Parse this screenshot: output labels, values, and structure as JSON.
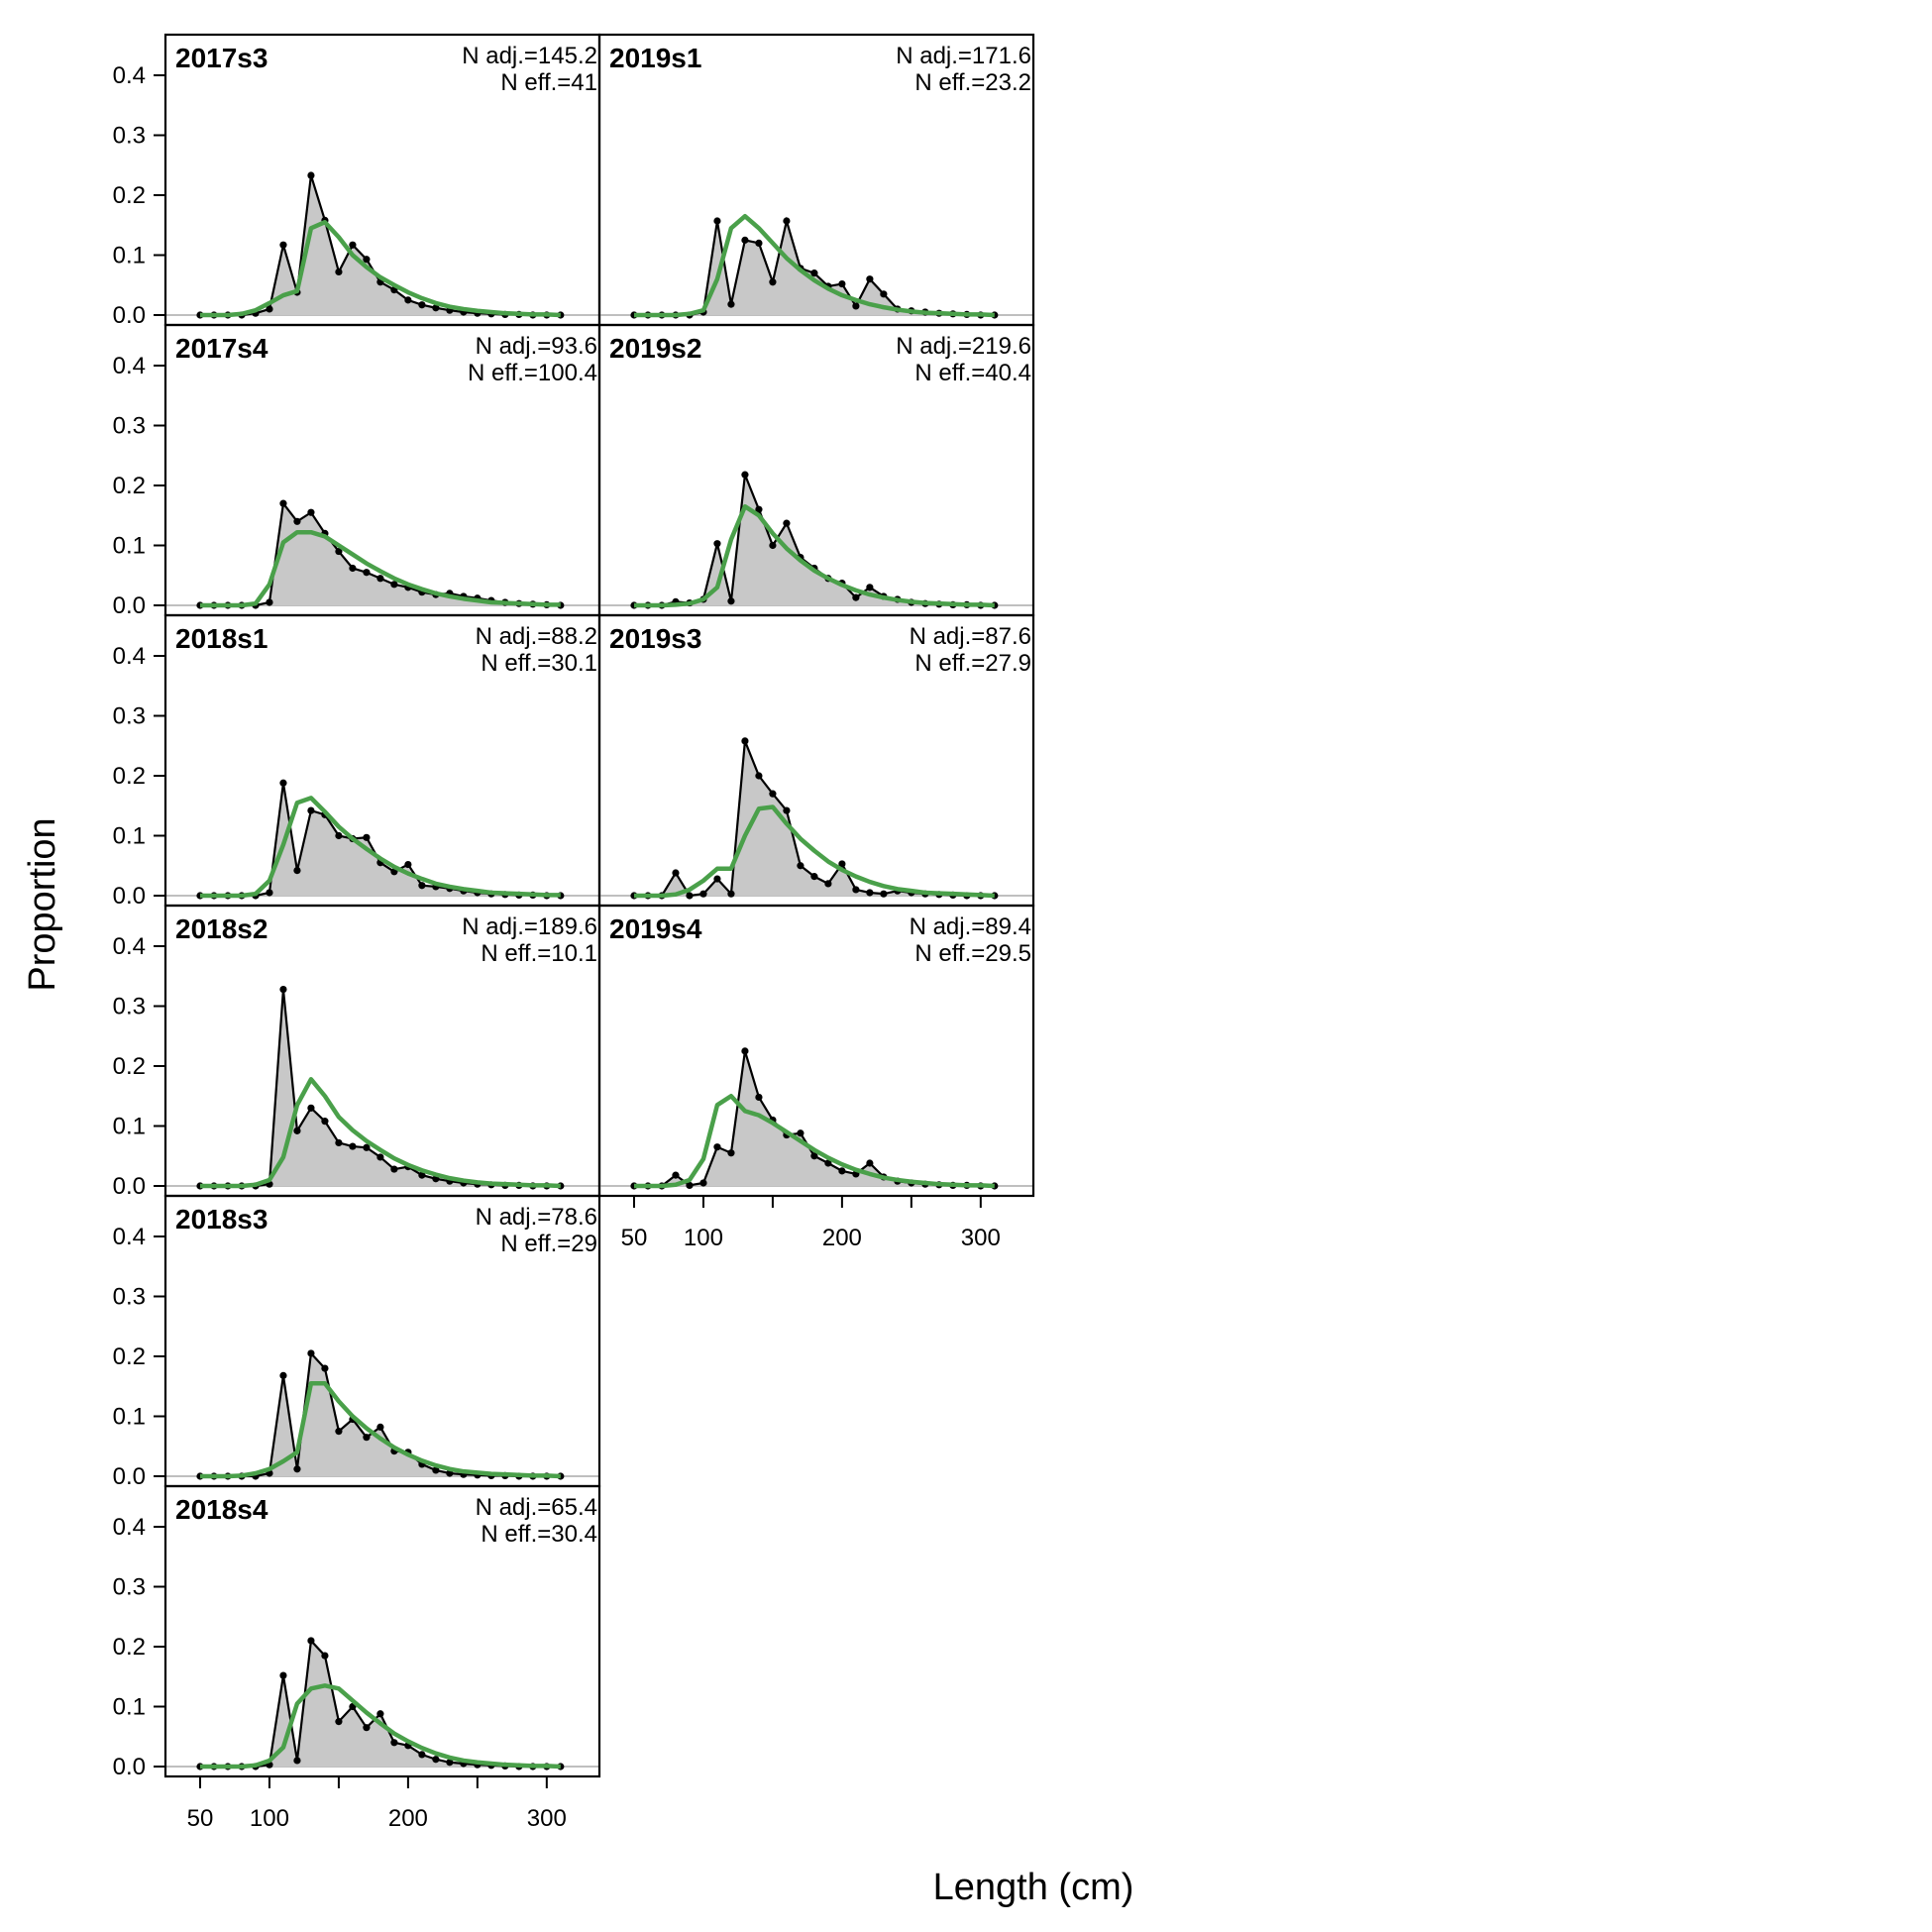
{
  "chart_data": {
    "type": "area",
    "ylabel": "Proportion",
    "xlabel": "Length (cm)",
    "ylim": [
      0,
      0.47
    ],
    "xlim": [
      25,
      338
    ],
    "y_ticks": [
      0.0,
      0.1,
      0.2,
      0.3,
      0.4
    ],
    "y_tick_labels": [
      "0.0",
      "0.1",
      "0.2",
      "0.3",
      "0.4"
    ],
    "x_ticks": [
      50,
      100,
      150,
      200,
      250,
      300
    ],
    "x_tick_labels": [
      "50",
      "100",
      "",
      "200",
      "",
      "300"
    ],
    "x": [
      50,
      60,
      70,
      80,
      90,
      100,
      110,
      120,
      130,
      140,
      150,
      160,
      170,
      180,
      190,
      200,
      210,
      220,
      230,
      240,
      250,
      260,
      270,
      280,
      290,
      300,
      310
    ],
    "colors": {
      "observed_fill": "#c8c8c8",
      "observed_line": "#000000",
      "expected_line": "#4aa04a",
      "zero_line": "#bfbfbf"
    },
    "panels": [
      {
        "label": "2017s3",
        "n_adj": "N adj.=145.2",
        "n_eff": "N eff.=41",
        "observed": [
          0,
          0,
          0,
          0,
          0.003,
          0.01,
          0.117,
          0.038,
          0.233,
          0.158,
          0.072,
          0.117,
          0.093,
          0.055,
          0.042,
          0.025,
          0.017,
          0.012,
          0.008,
          0.005,
          0.003,
          0.002,
          0.001,
          0.001,
          0,
          0,
          0
        ],
        "expected": [
          0,
          0,
          0,
          0.002,
          0.008,
          0.02,
          0.033,
          0.04,
          0.145,
          0.155,
          0.13,
          0.1,
          0.08,
          0.063,
          0.05,
          0.038,
          0.028,
          0.02,
          0.014,
          0.01,
          0.007,
          0.005,
          0.003,
          0.002,
          0.001,
          0.001,
          0
        ]
      },
      {
        "label": "2017s4",
        "n_adj": "N adj.=93.6",
        "n_eff": "N eff.=100.4",
        "observed": [
          0,
          0,
          0,
          0,
          0,
          0.005,
          0.17,
          0.14,
          0.155,
          0.12,
          0.09,
          0.062,
          0.055,
          0.045,
          0.035,
          0.03,
          0.022,
          0.018,
          0.02,
          0.015,
          0.012,
          0.008,
          0.005,
          0.003,
          0.002,
          0.001,
          0
        ],
        "expected": [
          0,
          0,
          0,
          0,
          0.003,
          0.035,
          0.105,
          0.122,
          0.122,
          0.115,
          0.1,
          0.085,
          0.07,
          0.057,
          0.045,
          0.035,
          0.027,
          0.02,
          0.015,
          0.011,
          0.008,
          0.005,
          0.004,
          0.003,
          0.002,
          0.001,
          0.001
        ]
      },
      {
        "label": "2018s1",
        "n_adj": "N adj.=88.2",
        "n_eff": "N eff.=30.1",
        "observed": [
          0,
          0,
          0,
          0,
          0,
          0.005,
          0.188,
          0.042,
          0.142,
          0.135,
          0.1,
          0.095,
          0.097,
          0.055,
          0.04,
          0.052,
          0.017,
          0.015,
          0.012,
          0.008,
          0.005,
          0.003,
          0.002,
          0.001,
          0.001,
          0,
          0
        ],
        "expected": [
          0,
          0,
          0,
          0,
          0.003,
          0.025,
          0.085,
          0.155,
          0.163,
          0.14,
          0.115,
          0.095,
          0.078,
          0.062,
          0.048,
          0.037,
          0.028,
          0.02,
          0.015,
          0.011,
          0.008,
          0.005,
          0.004,
          0.003,
          0.002,
          0.001,
          0.001
        ]
      },
      {
        "label": "2018s2",
        "n_adj": "N adj.=189.6",
        "n_eff": "N eff.=10.1",
        "observed": [
          0,
          0,
          0,
          0,
          0,
          0.003,
          0.328,
          0.092,
          0.13,
          0.108,
          0.072,
          0.066,
          0.064,
          0.048,
          0.028,
          0.032,
          0.018,
          0.012,
          0.008,
          0.005,
          0.003,
          0.002,
          0.001,
          0.001,
          0,
          0,
          0
        ],
        "expected": [
          0,
          0,
          0,
          0,
          0.002,
          0.01,
          0.048,
          0.135,
          0.178,
          0.15,
          0.115,
          0.093,
          0.075,
          0.06,
          0.046,
          0.035,
          0.026,
          0.019,
          0.013,
          0.009,
          0.006,
          0.004,
          0.003,
          0.002,
          0.001,
          0.001,
          0
        ]
      },
      {
        "label": "2018s3",
        "n_adj": "N adj.=78.6",
        "n_eff": "N eff.=29",
        "observed": [
          0,
          0,
          0,
          0,
          0,
          0.005,
          0.168,
          0.012,
          0.205,
          0.18,
          0.075,
          0.095,
          0.065,
          0.082,
          0.042,
          0.04,
          0.02,
          0.01,
          0.005,
          0.003,
          0.002,
          0.001,
          0.001,
          0,
          0,
          0,
          0
        ],
        "expected": [
          0,
          0,
          0,
          0.001,
          0.005,
          0.012,
          0.025,
          0.04,
          0.155,
          0.155,
          0.125,
          0.1,
          0.08,
          0.063,
          0.048,
          0.036,
          0.026,
          0.018,
          0.012,
          0.008,
          0.006,
          0.004,
          0.003,
          0.002,
          0.001,
          0.001,
          0
        ]
      },
      {
        "label": "2018s4",
        "n_adj": "N adj.=65.4",
        "n_eff": "N eff.=30.4",
        "observed": [
          0,
          0,
          0,
          0,
          0,
          0.003,
          0.152,
          0.01,
          0.21,
          0.185,
          0.075,
          0.1,
          0.065,
          0.088,
          0.04,
          0.035,
          0.02,
          0.012,
          0.007,
          0.005,
          0.003,
          0.002,
          0.001,
          0,
          0,
          0,
          0
        ],
        "expected": [
          0,
          0,
          0,
          0,
          0.002,
          0.01,
          0.032,
          0.105,
          0.13,
          0.135,
          0.13,
          0.11,
          0.09,
          0.072,
          0.055,
          0.042,
          0.031,
          0.022,
          0.015,
          0.01,
          0.007,
          0.005,
          0.003,
          0.002,
          0.001,
          0.001,
          0
        ]
      },
      {
        "label": "2019s1",
        "n_adj": "N adj.=171.6",
        "n_eff": "N eff.=23.2",
        "observed": [
          0,
          0,
          0,
          0,
          0,
          0.005,
          0.157,
          0.018,
          0.125,
          0.12,
          0.055,
          0.157,
          0.078,
          0.07,
          0.048,
          0.052,
          0.015,
          0.06,
          0.035,
          0.01,
          0.007,
          0.005,
          0.003,
          0.002,
          0.001,
          0,
          0
        ],
        "expected": [
          0,
          0,
          0,
          0,
          0.002,
          0.008,
          0.06,
          0.145,
          0.165,
          0.145,
          0.12,
          0.095,
          0.075,
          0.058,
          0.044,
          0.033,
          0.025,
          0.018,
          0.013,
          0.009,
          0.006,
          0.004,
          0.003,
          0.002,
          0.001,
          0.001,
          0
        ]
      },
      {
        "label": "2019s2",
        "n_adj": "N adj.=219.6",
        "n_eff": "N eff.=40.4",
        "observed": [
          0,
          0,
          0,
          0.006,
          0.004,
          0.01,
          0.103,
          0.007,
          0.218,
          0.16,
          0.1,
          0.137,
          0.08,
          0.062,
          0.045,
          0.037,
          0.013,
          0.03,
          0.015,
          0.01,
          0.005,
          0.003,
          0.002,
          0.001,
          0.001,
          0,
          0
        ],
        "expected": [
          0,
          0,
          0,
          0.001,
          0.003,
          0.01,
          0.03,
          0.11,
          0.165,
          0.15,
          0.12,
          0.095,
          0.075,
          0.058,
          0.045,
          0.034,
          0.025,
          0.018,
          0.013,
          0.009,
          0.006,
          0.004,
          0.003,
          0.002,
          0.001,
          0.001,
          0
        ]
      },
      {
        "label": "2019s3",
        "n_adj": "N adj.=87.6",
        "n_eff": "N eff.=27.9",
        "observed": [
          0,
          0,
          0,
          0.038,
          0,
          0.003,
          0.028,
          0.003,
          0.258,
          0.2,
          0.17,
          0.142,
          0.05,
          0.032,
          0.02,
          0.053,
          0.01,
          0.005,
          0.003,
          0.008,
          0.005,
          0.003,
          0.002,
          0.001,
          0,
          0,
          0
        ],
        "expected": [
          0,
          0,
          0,
          0.002,
          0.01,
          0.025,
          0.045,
          0.045,
          0.1,
          0.145,
          0.148,
          0.12,
          0.095,
          0.075,
          0.057,
          0.043,
          0.032,
          0.023,
          0.016,
          0.011,
          0.008,
          0.005,
          0.004,
          0.003,
          0.002,
          0.001,
          0
        ]
      },
      {
        "label": "2019s4",
        "n_adj": "N adj.=89.4",
        "n_eff": "N eff.=29.5",
        "observed": [
          0,
          0,
          0,
          0.018,
          0.001,
          0.005,
          0.065,
          0.055,
          0.225,
          0.148,
          0.11,
          0.085,
          0.088,
          0.05,
          0.038,
          0.025,
          0.02,
          0.038,
          0.015,
          0.008,
          0.005,
          0.003,
          0.002,
          0.001,
          0.001,
          0,
          0
        ],
        "expected": [
          0,
          0,
          0,
          0.002,
          0.01,
          0.045,
          0.135,
          0.15,
          0.125,
          0.118,
          0.105,
          0.09,
          0.075,
          0.06,
          0.047,
          0.036,
          0.027,
          0.02,
          0.014,
          0.01,
          0.007,
          0.005,
          0.003,
          0.002,
          0.001,
          0.001,
          0
        ]
      }
    ]
  }
}
